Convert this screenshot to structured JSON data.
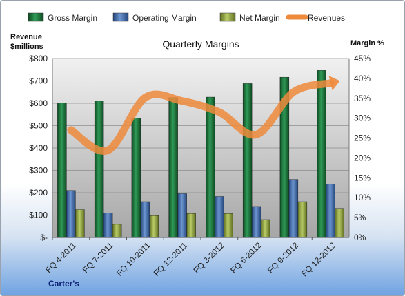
{
  "chart_data": {
    "type": "bar",
    "title": "Quarterly Margins",
    "categories": [
      "FQ 4-2011",
      "FQ 7-2011",
      "FQ 10-2011",
      "FQ 12-2011",
      "FQ 3-2012",
      "FQ 6-2012",
      "FQ 9-2012",
      "FQ 12-2012"
    ],
    "left_axis": {
      "title_lines": [
        "Revenue",
        "$millions"
      ],
      "range": [
        0,
        800
      ],
      "ticks": [
        0,
        100,
        200,
        300,
        400,
        500,
        600,
        700,
        800
      ],
      "tick_labels": [
        "$-",
        "$100",
        "$200",
        "$300",
        "$400",
        "$500",
        "$600",
        "$700",
        "$800"
      ]
    },
    "right_axis": {
      "title": "Margin %",
      "range": [
        0,
        45
      ],
      "ticks": [
        0,
        5,
        10,
        15,
        20,
        25,
        30,
        35,
        40,
        45
      ],
      "tick_labels": [
        "0%",
        "5%",
        "10%",
        "15%",
        "20%",
        "25%",
        "30%",
        "35%",
        "40%",
        "45%"
      ]
    },
    "series": [
      {
        "name": "Gross Margin",
        "type": "bar",
        "axis": "right",
        "color": "#1e6b3a",
        "values": [
          33.8,
          34.3,
          30.0,
          35.2,
          35.3,
          38.7,
          40.3,
          42.0
        ]
      },
      {
        "name": "Operating Margin",
        "type": "bar",
        "axis": "right",
        "color": "#3f6aa8",
        "values": [
          11.8,
          6.1,
          9.0,
          11.0,
          10.3,
          7.8,
          14.6,
          13.4
        ]
      },
      {
        "name": "Net Margin",
        "type": "bar",
        "axis": "right",
        "color": "#8ea143",
        "values": [
          7.0,
          3.3,
          5.5,
          6.0,
          6.0,
          4.5,
          9.0,
          7.3
        ]
      },
      {
        "name": "Revenues",
        "type": "line",
        "axis": "left",
        "color": "#ee8a3c",
        "values": [
          480,
          390,
          625,
          610,
          560,
          460,
          650,
          690
        ]
      }
    ],
    "legend_position": "top",
    "grid": true
  },
  "footer": {
    "company": "Carter's"
  }
}
